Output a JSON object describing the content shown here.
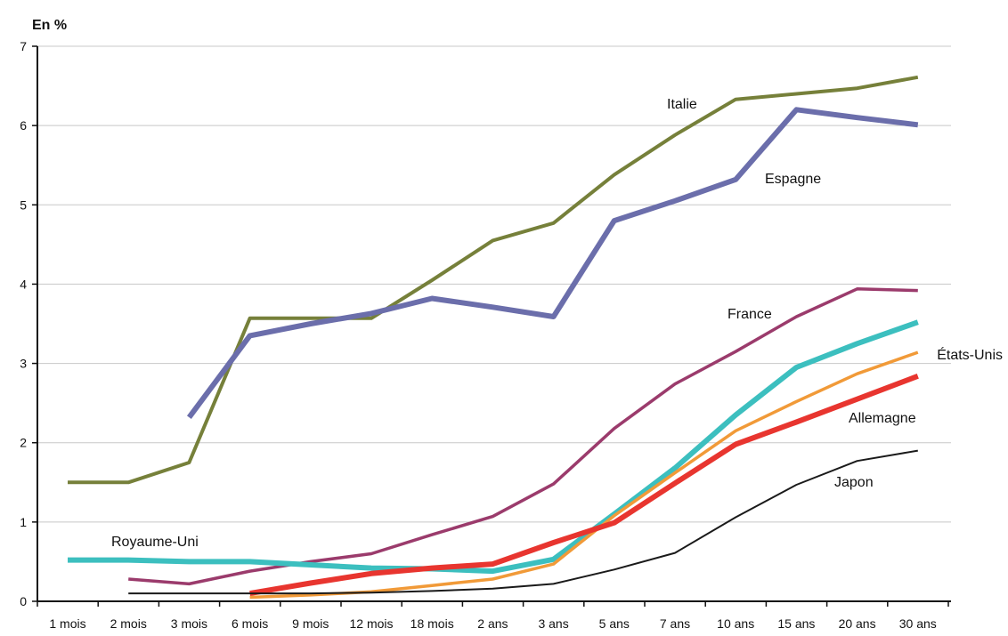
{
  "chart_data": {
    "type": "line",
    "ylabel": "En %",
    "ylim": [
      0,
      7
    ],
    "yticks": [
      "0",
      "1",
      "2",
      "3",
      "4",
      "5",
      "6",
      "7"
    ],
    "grid": true,
    "categories": [
      "1 mois",
      "2 mois",
      "3 mois",
      "6 mois",
      "9 mois",
      "12 mois",
      "18 mois",
      "2 ans",
      "3 ans",
      "5 ans",
      "7 ans",
      "10 ans",
      "15 ans",
      "20 ans",
      "30 ans"
    ],
    "series": [
      {
        "name": "Italie",
        "color": "#76803a",
        "values": [
          1.5,
          1.5,
          1.75,
          3.57,
          3.57,
          3.57,
          4.05,
          4.55,
          4.77,
          5.38,
          5.88,
          6.33,
          6.4,
          6.47,
          6.61
        ]
      },
      {
        "name": "Espagne",
        "color": "#6b6eab",
        "values": [
          null,
          null,
          2.32,
          3.35,
          3.5,
          3.63,
          3.82,
          3.71,
          3.59,
          4.8,
          5.05,
          5.32,
          6.2,
          6.1,
          6.01
        ]
      },
      {
        "name": "France",
        "color": "#9b3b6c",
        "values": [
          null,
          0.28,
          0.22,
          0.38,
          0.5,
          0.6,
          0.84,
          1.07,
          1.48,
          2.18,
          2.74,
          3.15,
          3.59,
          3.94,
          3.92
        ]
      },
      {
        "name": "Royaume-Uni",
        "color": "#3cbfbf",
        "values": [
          0.52,
          0.52,
          0.5,
          0.5,
          0.46,
          0.42,
          0.41,
          0.38,
          0.53,
          1.1,
          1.68,
          2.35,
          2.95,
          3.25,
          3.52
        ]
      },
      {
        "name": "États-Unis",
        "color": "#f19a38",
        "values": [
          null,
          null,
          null,
          0.05,
          0.08,
          0.12,
          0.2,
          0.28,
          0.47,
          1.08,
          1.62,
          2.15,
          2.52,
          2.87,
          3.14
        ]
      },
      {
        "name": "Allemagne",
        "color": "#e8352f",
        "values": [
          null,
          null,
          null,
          0.1,
          0.23,
          0.35,
          0.42,
          0.47,
          0.74,
          0.99,
          1.49,
          1.98,
          2.26,
          2.55,
          2.84
        ]
      },
      {
        "name": "Japon",
        "color": "#1a1a1a",
        "values": [
          null,
          0.1,
          0.1,
          0.1,
          0.1,
          0.11,
          0.13,
          0.16,
          0.22,
          0.4,
          0.61,
          1.06,
          1.47,
          1.77,
          1.9
        ]
      }
    ]
  }
}
